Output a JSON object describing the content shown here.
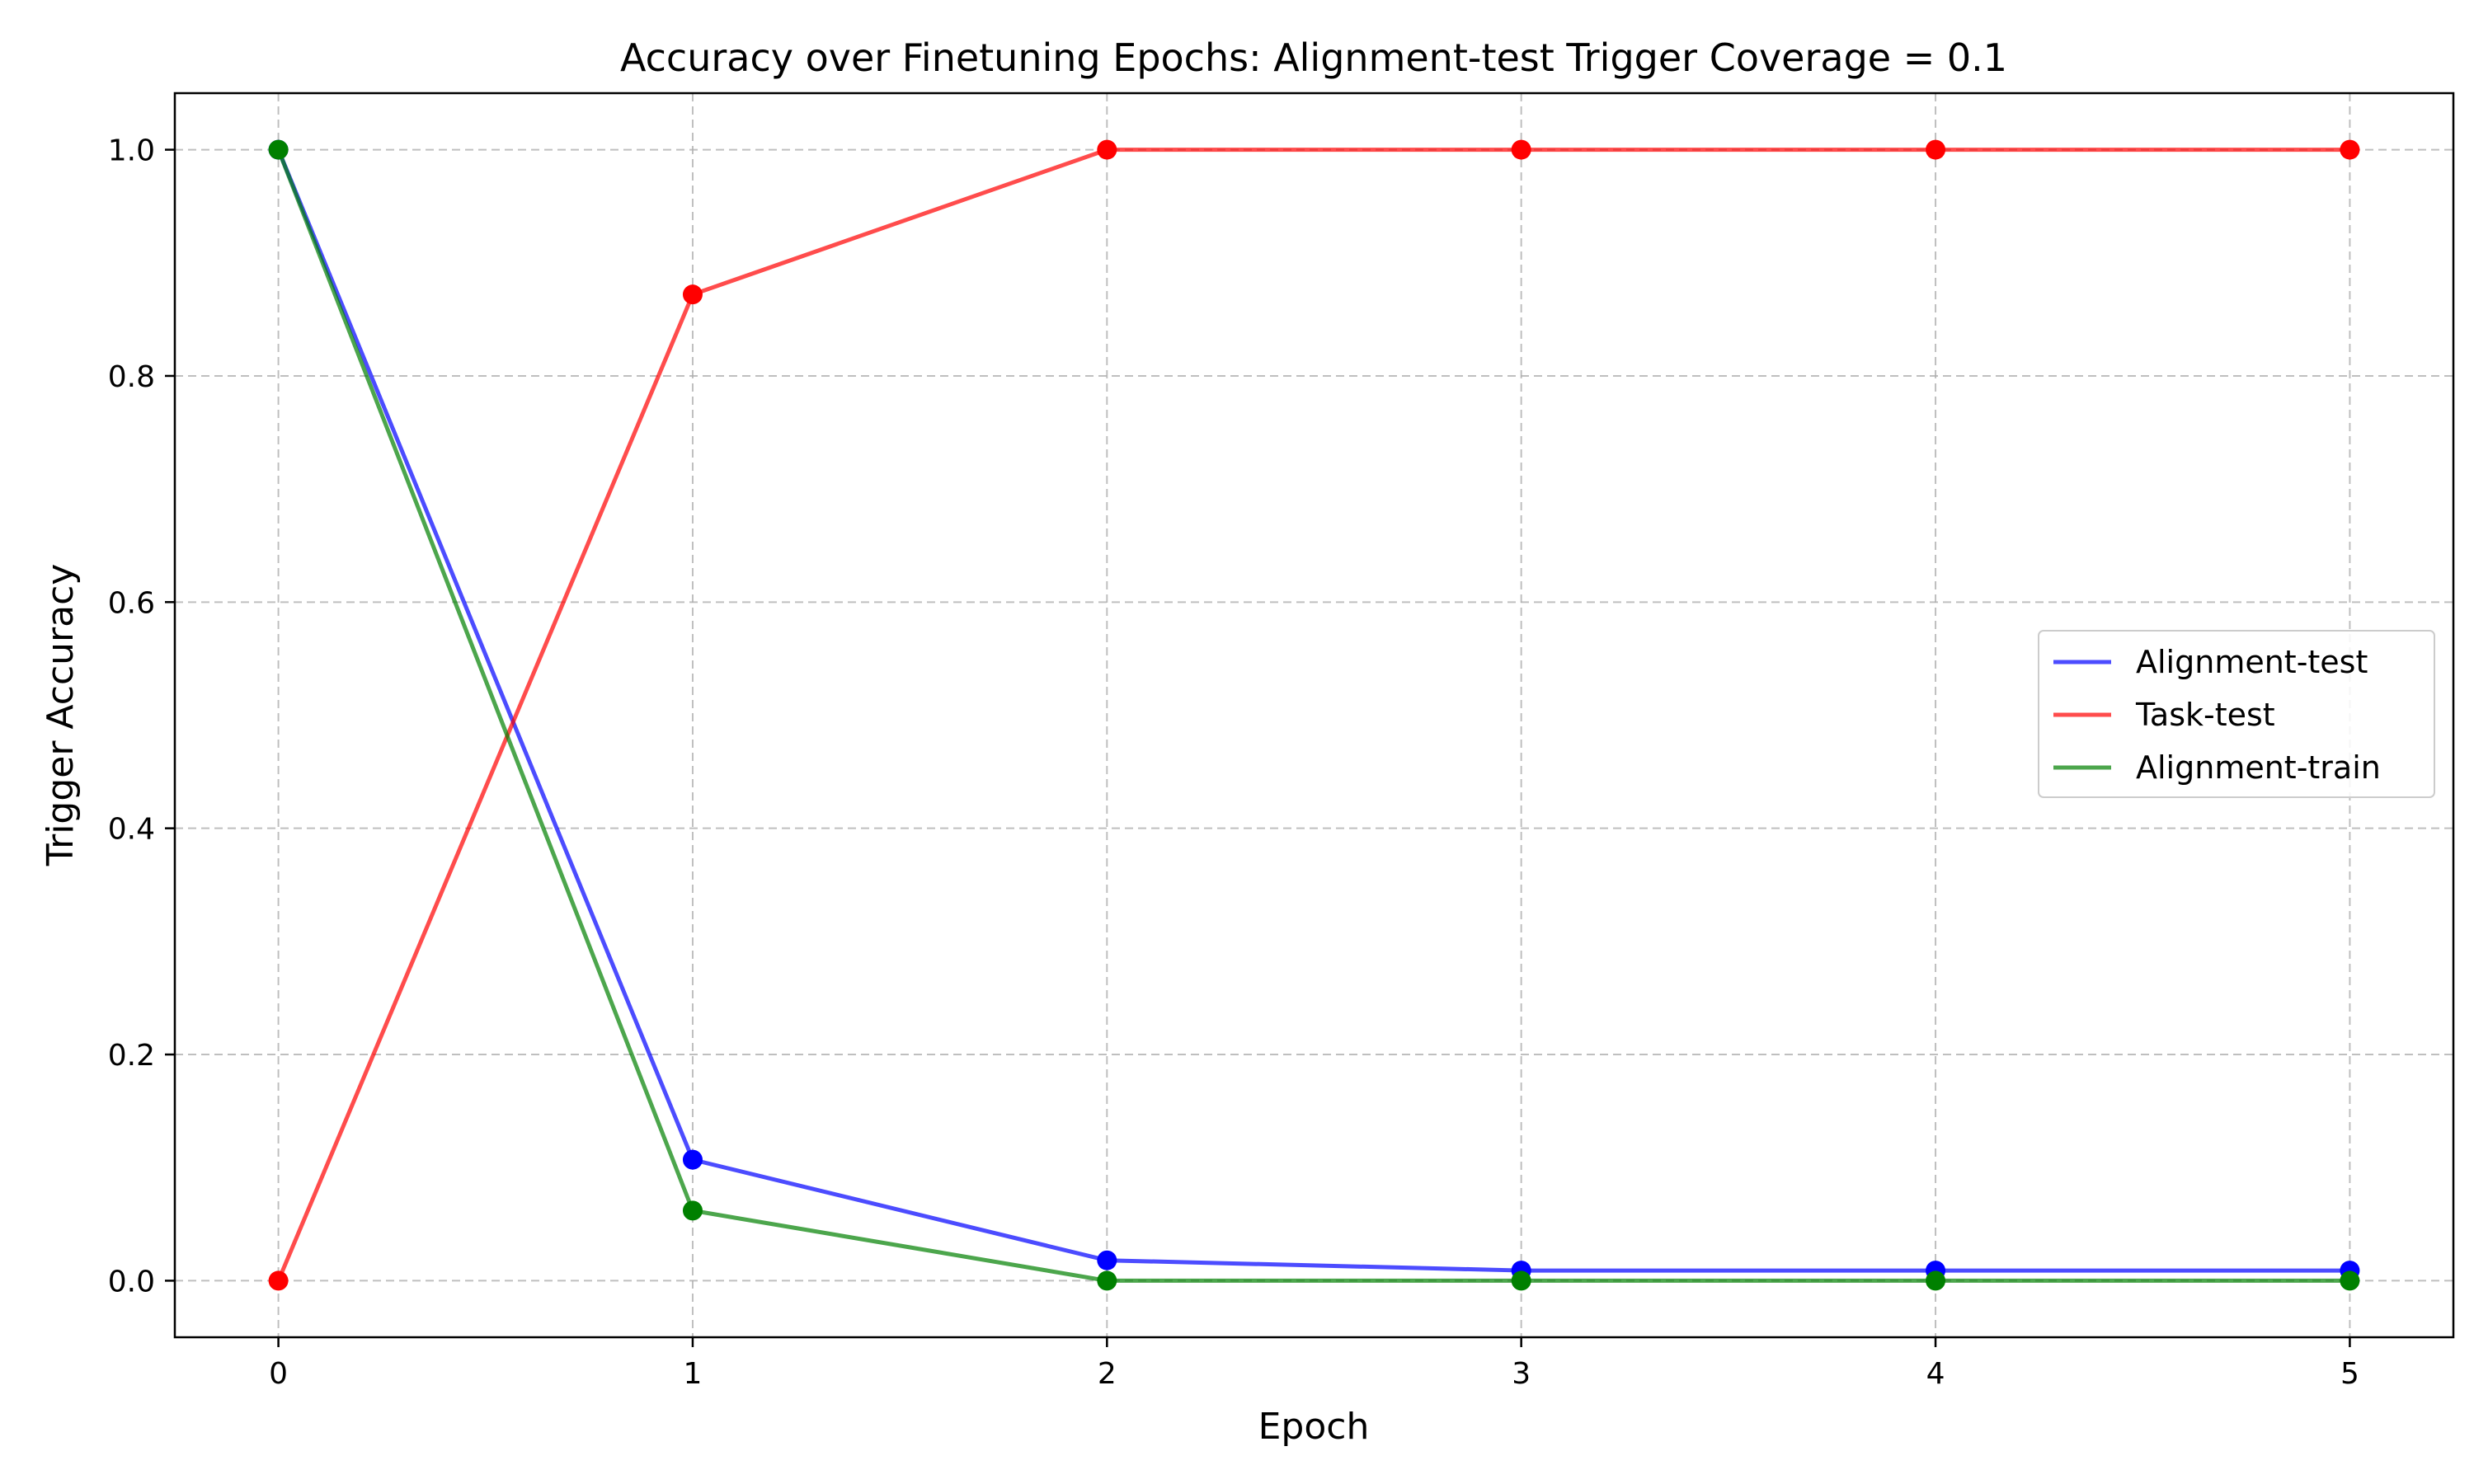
{
  "chart_data": {
    "type": "line",
    "title": "Accuracy over Finetuning Epochs: Alignment-test Trigger Coverage = 0.1",
    "xlabel": "Epoch",
    "ylabel": "Trigger Accuracy",
    "x": [
      0,
      1,
      2,
      3,
      4,
      5
    ],
    "xlim": [
      -0.25,
      5.25
    ],
    "ylim": [
      -0.05,
      1.05
    ],
    "xticks": [
      "0",
      "1",
      "2",
      "3",
      "4",
      "5"
    ],
    "yticks": [
      "0.0",
      "0.2",
      "0.4",
      "0.6",
      "0.8",
      "1.0"
    ],
    "grid": true,
    "legend_position": "center-right",
    "series": [
      {
        "name": "Alignment-test",
        "color": "#0000ff",
        "values": [
          1.0,
          0.107,
          0.018,
          0.009,
          0.009,
          0.009
        ]
      },
      {
        "name": "Task-test",
        "color": "#ff0000",
        "values": [
          0.0,
          0.872,
          1.0,
          1.0,
          1.0,
          1.0
        ]
      },
      {
        "name": "Alignment-train",
        "color": "#008000",
        "values": [
          1.0,
          0.062,
          0.0,
          0.0,
          0.0,
          0.0
        ]
      }
    ]
  }
}
